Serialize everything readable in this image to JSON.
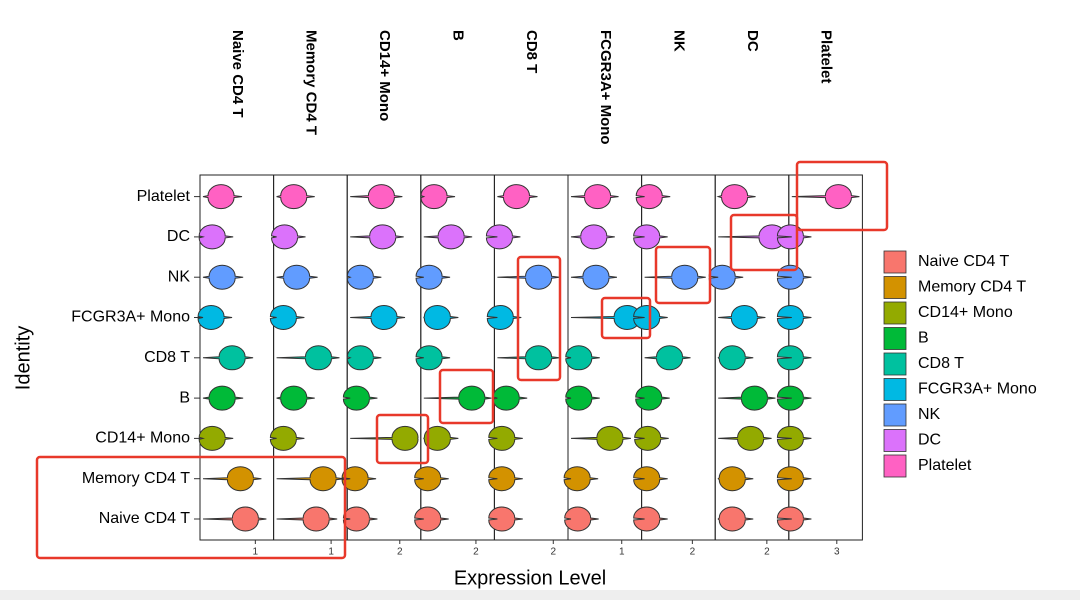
{
  "chart_data": {
    "type": "violin",
    "xlabel": "Expression Level",
    "ylabel": "Identity",
    "identities": [
      "Naive CD4 T",
      "Memory CD4 T",
      "CD14+ Mono",
      "B",
      "CD8 T",
      "FCGR3A+ Mono",
      "NK",
      "DC",
      "Platelet"
    ],
    "colors": [
      "#F8766D",
      "#D39200",
      "#93AA00",
      "#00BA38",
      "#00C19F",
      "#00B9E3",
      "#619CFF",
      "#DB72FB",
      "#FF61C3"
    ],
    "panels": [
      {
        "xlim": [
          0,
          1.33
        ],
        "xticks": [
          1
        ],
        "values": [
          0.82,
          0.73,
          0.22,
          0.4,
          0.58,
          0.2,
          0.4,
          0.22,
          0.38
        ]
      },
      {
        "xlim": [
          0,
          1.28
        ],
        "xticks": [
          1
        ],
        "values": [
          0.74,
          0.86,
          0.17,
          0.35,
          0.78,
          0.17,
          0.4,
          0.19,
          0.35
        ]
      },
      {
        "xlim": [
          0,
          2.8
        ],
        "xticks": [
          2
        ],
        "values": [
          0.35,
          0.3,
          2.2,
          0.35,
          0.5,
          1.4,
          0.5,
          1.35,
          1.3
        ]
      },
      {
        "xlim": [
          0,
          2.67
        ],
        "xticks": [
          2
        ],
        "values": [
          0.25,
          0.25,
          0.6,
          1.85,
          0.3,
          0.6,
          0.3,
          1.1,
          0.48
        ]
      },
      {
        "xlim": [
          0,
          2.5
        ],
        "xticks": [
          2
        ],
        "values": [
          0.25,
          0.25,
          0.25,
          0.4,
          1.5,
          0.2,
          1.5,
          0.17,
          0.75
        ]
      },
      {
        "xlim": [
          0,
          1.37
        ],
        "xticks": [
          1
        ],
        "values": [
          0.18,
          0.17,
          0.78,
          0.2,
          0.2,
          1.1,
          0.52,
          0.48,
          0.55
        ]
      },
      {
        "xlim": [
          0,
          2.9
        ],
        "xticks": [
          2
        ],
        "values": [
          0.2,
          0.2,
          0.24,
          0.28,
          1.1,
          0.2,
          1.7,
          0.2,
          0.3
        ]
      },
      {
        "xlim": [
          0,
          2.85
        ],
        "xticks": [
          2
        ],
        "values": [
          0.66,
          0.66,
          1.37,
          1.52,
          0.66,
          1.13,
          0.27,
          2.2,
          0.75
        ]
      },
      {
        "xlim": [
          0,
          4.6
        ],
        "xticks": [
          3
        ],
        "values": [
          0.1,
          0.1,
          0.1,
          0.1,
          0.1,
          0.1,
          0.1,
          0.1,
          3.1
        ]
      }
    ]
  }
}
